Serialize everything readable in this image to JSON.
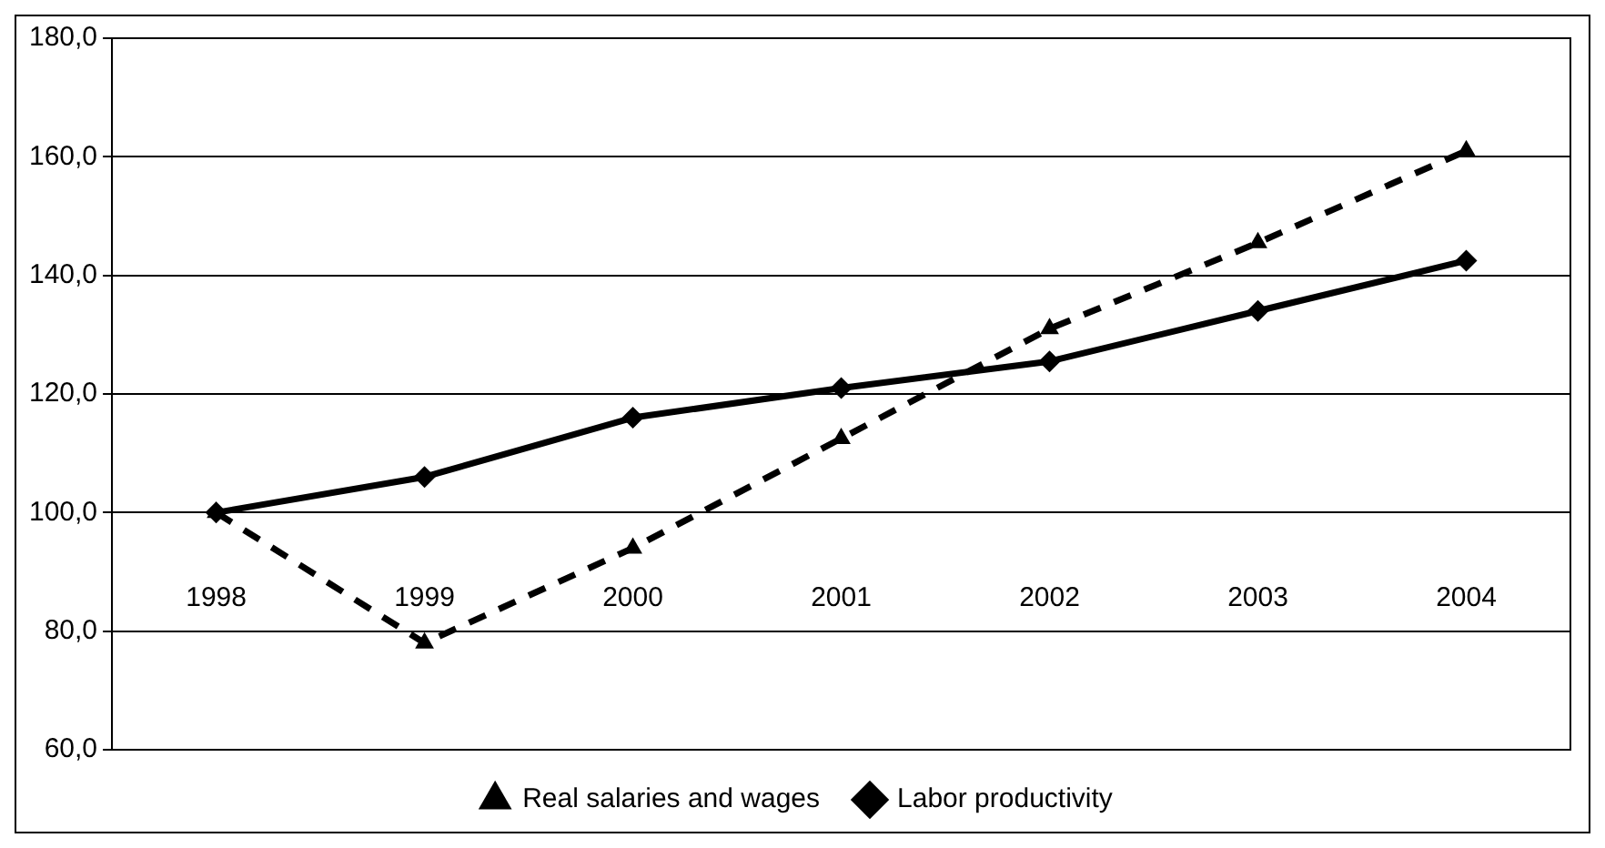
{
  "chart_data": {
    "type": "line",
    "categories": [
      "1998",
      "1999",
      "2000",
      "2001",
      "2002",
      "2003",
      "2004"
    ],
    "series": [
      {
        "name": "Labor productivity",
        "color": "#000000",
        "marker": "diamond",
        "line_style": "solid",
        "values": [
          100,
          106,
          116,
          121,
          125.5,
          134,
          142.5
        ]
      },
      {
        "name": "Real salaries and wages",
        "color": "#000000",
        "marker": "triangle",
        "line_style": "dashed",
        "values": [
          100,
          78,
          94,
          112.5,
          131,
          145.5,
          161
        ]
      }
    ],
    "ylim": [
      60,
      180
    ],
    "yticks": [
      {
        "value": 60,
        "label": "60,0"
      },
      {
        "value": 80,
        "label": "80,0"
      },
      {
        "value": 100,
        "label": "100,0"
      },
      {
        "value": 120,
        "label": "120,0"
      },
      {
        "value": 140,
        "label": "140,0"
      },
      {
        "value": 160,
        "label": "160,0"
      },
      {
        "value": 180,
        "label": "180,0"
      }
    ],
    "grid": "y",
    "legend": "bottom"
  }
}
